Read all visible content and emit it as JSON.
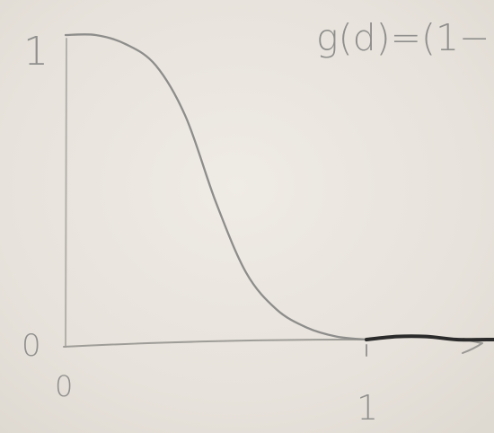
{
  "chart_data": {
    "type": "line",
    "title": "g(d)=(1−",
    "xlabel": "",
    "ylabel": "",
    "x_ticks": [
      {
        "value": 0,
        "label": "0"
      },
      {
        "value": 1,
        "label": "1"
      }
    ],
    "y_ticks": [
      {
        "value": 0,
        "label": "0"
      },
      {
        "value": 1,
        "label": "1"
      }
    ],
    "xlim": [
      0,
      1.5
    ],
    "ylim": [
      0,
      1.0
    ],
    "grid": false,
    "series": [
      {
        "x": [
          0,
          0.1,
          0.2,
          0.3,
          0.4,
          0.5,
          0.6,
          0.7,
          0.8,
          0.9,
          1.0
        ],
        "y": [
          1.0,
          1.0,
          0.97,
          0.9,
          0.73,
          0.45,
          0.22,
          0.1,
          0.04,
          0.01,
          0.0
        ],
        "color": "#8d8d8b"
      },
      {
        "x": [
          1.0,
          1.1,
          1.2,
          1.3,
          1.4,
          1.5
        ],
        "y": [
          0.0,
          0.01,
          0.01,
          0.0,
          0.0,
          0.0
        ],
        "color": "#2b2b2b"
      }
    ],
    "colors": {
      "paper": "#e9e5de",
      "pencil": "#8f8f8d",
      "dark_pencil": "#2b2b2b"
    }
  }
}
